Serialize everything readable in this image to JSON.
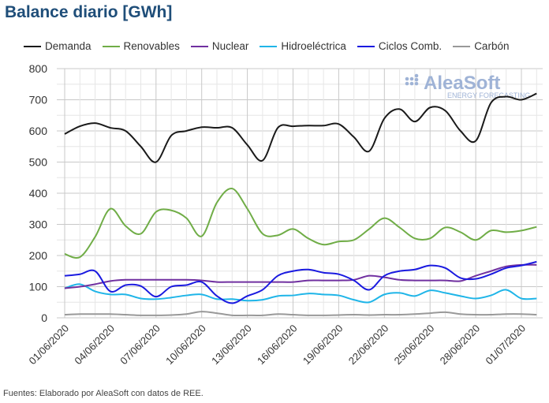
{
  "chart_data": {
    "type": "line",
    "title": "Balance diario [GWh]",
    "xlabel": "",
    "ylabel": "",
    "ylim": [
      0,
      800
    ],
    "yticks": [
      "0",
      "100",
      "200",
      "300",
      "400",
      "500",
      "600",
      "700",
      "800"
    ],
    "x": [
      "01/06",
      "02/06",
      "03/06",
      "04/06",
      "05/06",
      "06/06",
      "07/06",
      "08/06",
      "09/06",
      "10/06",
      "11/06",
      "12/06",
      "13/06",
      "14/06",
      "15/06",
      "16/06",
      "17/06",
      "18/06",
      "19/06",
      "20/06",
      "21/06",
      "22/06",
      "23/06",
      "24/06",
      "25/06",
      "26/06",
      "27/06",
      "28/06",
      "29/06",
      "30/06",
      "01/07",
      "02/07"
    ],
    "xtick_labels": [
      "01/06/2020",
      "04/06/2020",
      "07/06/2020",
      "10/06/2020",
      "13/06/2020",
      "16/06/2020",
      "19/06/2020",
      "22/06/2020",
      "25/06/2020",
      "28/06/2020",
      "01/07/2020"
    ],
    "grid": true,
    "legend_position": "top",
    "series": [
      {
        "name": "Demanda",
        "color": "#1a1a1a",
        "values": [
          590,
          615,
          625,
          610,
          600,
          550,
          500,
          585,
          600,
          612,
          610,
          610,
          555,
          505,
          610,
          615,
          617,
          617,
          622,
          580,
          535,
          640,
          670,
          630,
          675,
          665,
          600,
          568,
          690,
          710,
          700,
          720
        ]
      },
      {
        "name": "Renovables",
        "color": "#70ad47",
        "values": [
          205,
          195,
          260,
          350,
          295,
          270,
          340,
          345,
          320,
          262,
          370,
          415,
          350,
          270,
          265,
          285,
          255,
          235,
          245,
          250,
          285,
          320,
          290,
          255,
          255,
          290,
          275,
          250,
          280,
          275,
          280,
          292
        ]
      },
      {
        "name": "Nuclear",
        "color": "#7030a0",
        "values": [
          95,
          100,
          108,
          118,
          122,
          122,
          122,
          122,
          122,
          120,
          115,
          115,
          115,
          115,
          115,
          115,
          120,
          120,
          120,
          122,
          135,
          130,
          122,
          120,
          120,
          120,
          118,
          135,
          150,
          165,
          170,
          170
        ]
      },
      {
        "name": "Hidroeléctrica",
        "color": "#1fb5e8",
        "values": [
          95,
          108,
          85,
          75,
          75,
          62,
          60,
          65,
          72,
          75,
          60,
          60,
          55,
          58,
          70,
          72,
          78,
          75,
          72,
          58,
          50,
          75,
          80,
          70,
          88,
          80,
          70,
          62,
          72,
          90,
          62,
          62
        ]
      },
      {
        "name": "Ciclos Comb.",
        "color": "#1a1ae0",
        "values": [
          135,
          140,
          150,
          85,
          105,
          102,
          68,
          100,
          105,
          115,
          70,
          47,
          70,
          90,
          135,
          150,
          155,
          145,
          140,
          120,
          90,
          135,
          150,
          155,
          168,
          160,
          128,
          125,
          140,
          160,
          168,
          180
        ]
      },
      {
        "name": "Carbón",
        "color": "#999999",
        "values": [
          10,
          12,
          12,
          12,
          10,
          8,
          8,
          9,
          12,
          20,
          15,
          8,
          8,
          8,
          12,
          10,
          8,
          8,
          9,
          10,
          9,
          10,
          10,
          12,
          15,
          18,
          12,
          10,
          10,
          12,
          12,
          10
        ]
      }
    ]
  },
  "logo": {
    "name": "AleaSoft",
    "tagline": "ENERGY FORECASTING"
  },
  "footer": "Fuentes: Elaborado por AleaSoft con datos de REE."
}
